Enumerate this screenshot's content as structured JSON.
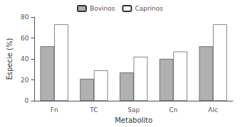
{
  "chart_data": {
    "type": "bar",
    "categories": [
      "Fn",
      "TC",
      "Sap",
      "Cn",
      "Alc"
    ],
    "series": [
      {
        "name": "Bovinos",
        "color": "#b0b0b0",
        "values": [
          52,
          21,
          27,
          40,
          52
        ]
      },
      {
        "name": "Caprinos",
        "color": "#ffffff",
        "values": [
          73,
          29,
          42,
          47,
          73
        ]
      }
    ],
    "xlabel": "Metabolito",
    "ylabel": "Especie (%)",
    "ylim": [
      0,
      80
    ],
    "yticks": [
      0,
      20,
      40,
      60,
      80
    ],
    "grid": false,
    "legend": "top"
  }
}
